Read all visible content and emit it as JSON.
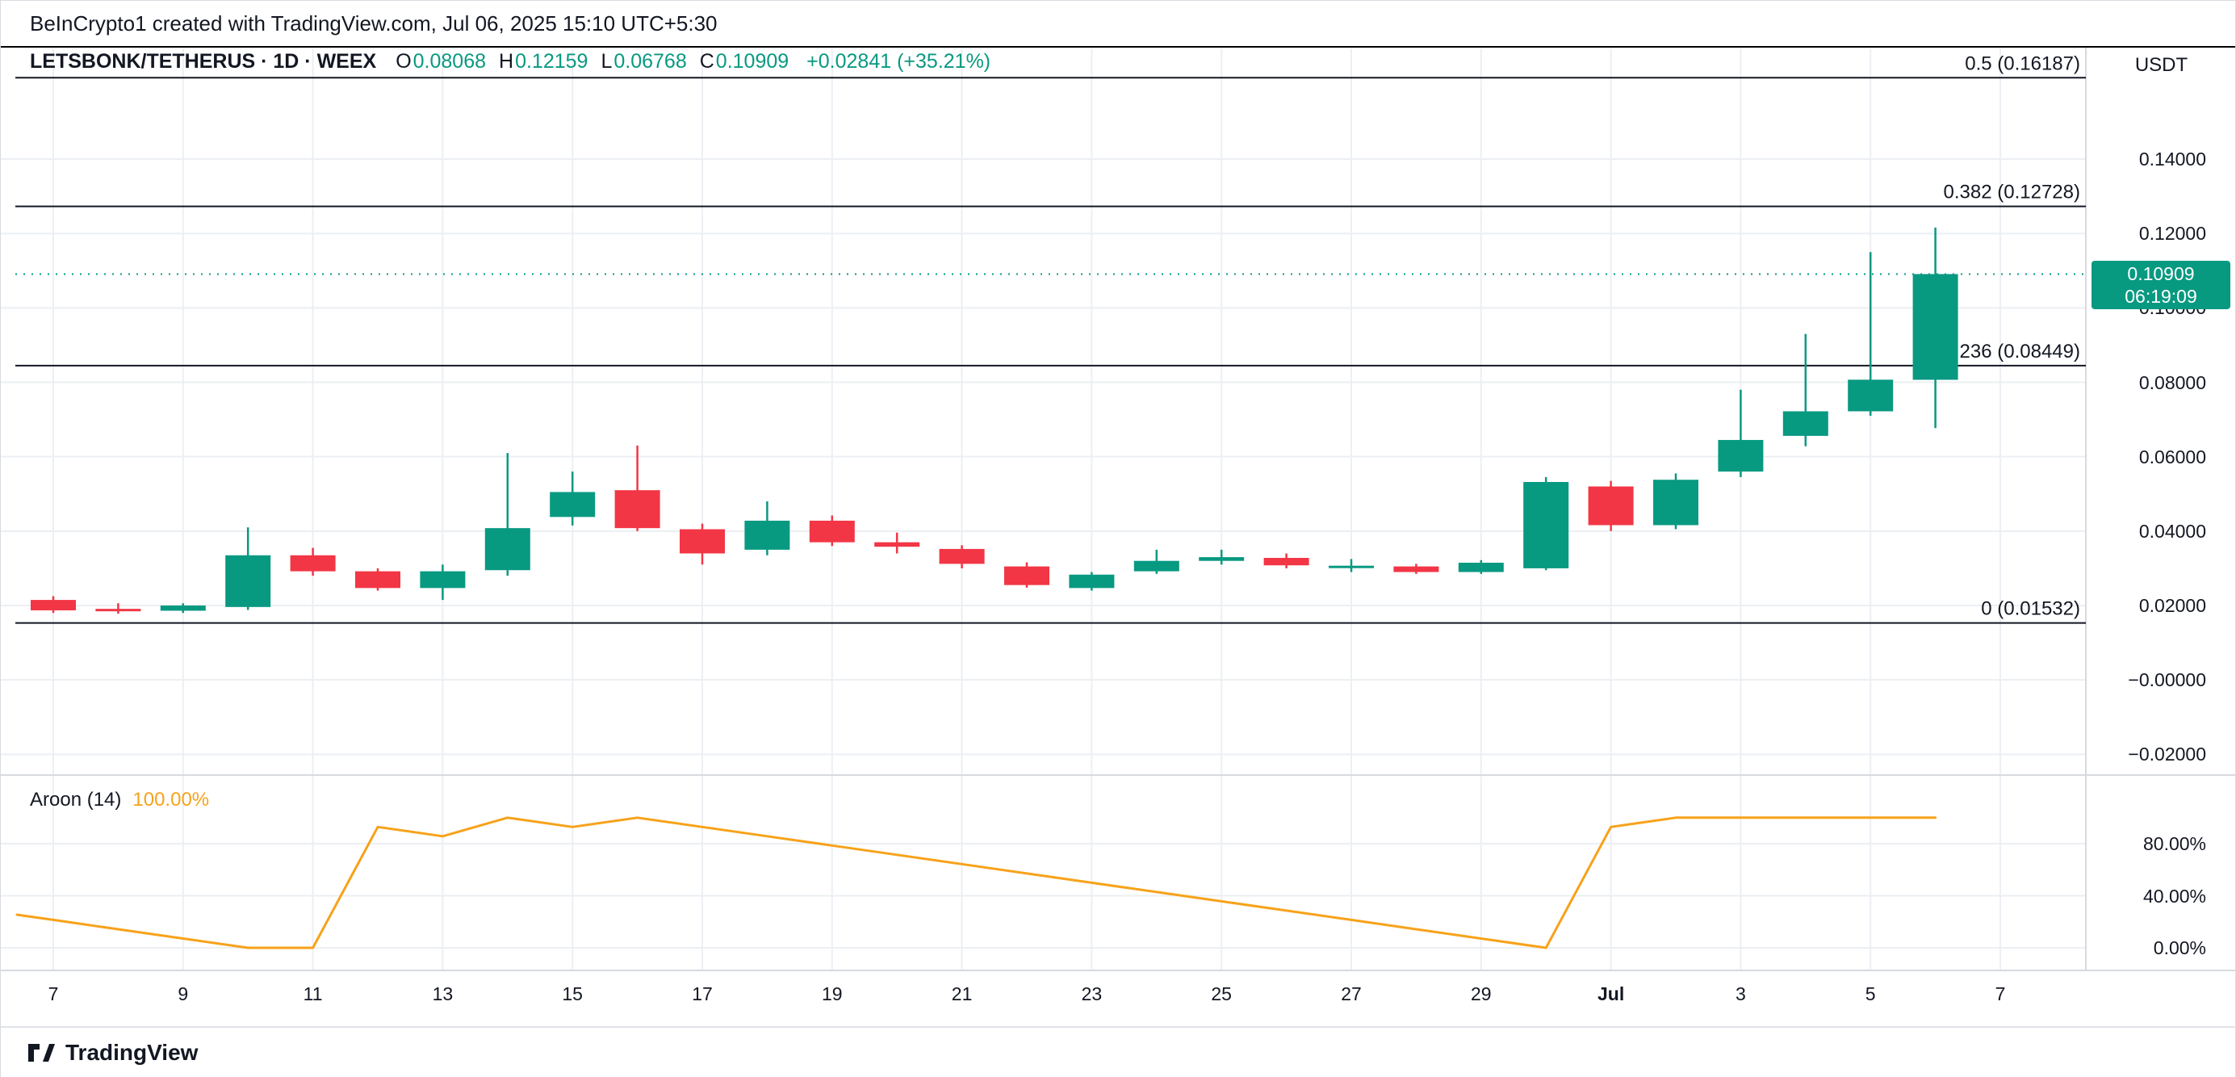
{
  "attribution": "BeInCrypto1 created with TradingView.com, Jul 06, 2025 15:10 UTC+5:30",
  "symbol_bar": {
    "title": "LETSBONK/TETHERUS · 1D · WEEX",
    "ohlc": [
      {
        "label": "O",
        "value": "0.08068"
      },
      {
        "label": "H",
        "value": "0.12159"
      },
      {
        "label": "L",
        "value": "0.06768"
      },
      {
        "label": "C",
        "value": "0.10909"
      }
    ],
    "change": "+0.02841 (+35.21%)"
  },
  "price_axis": {
    "unit": "USDT",
    "ticks": [
      {
        "label": "0.14000",
        "value": 0.14
      },
      {
        "label": "0.12000",
        "value": 0.12
      },
      {
        "label": "0.10000",
        "value": 0.1
      },
      {
        "label": "0.08000",
        "value": 0.08
      },
      {
        "label": "0.06000",
        "value": 0.06
      },
      {
        "label": "0.04000",
        "value": 0.04
      },
      {
        "label": "0.02000",
        "value": 0.02
      },
      {
        "label": "−0.00000",
        "value": 0.0
      },
      {
        "label": "−0.02000",
        "value": -0.02
      }
    ],
    "current": {
      "value": 0.10909,
      "value_label": "0.10909",
      "countdown": "06:19:09"
    }
  },
  "time_axis": {
    "ticks": [
      {
        "label": "7",
        "index": 0
      },
      {
        "label": "9",
        "index": 2
      },
      {
        "label": "11",
        "index": 4
      },
      {
        "label": "13",
        "index": 6
      },
      {
        "label": "15",
        "index": 8
      },
      {
        "label": "17",
        "index": 10
      },
      {
        "label": "19",
        "index": 12
      },
      {
        "label": "21",
        "index": 14
      },
      {
        "label": "23",
        "index": 16
      },
      {
        "label": "25",
        "index": 18
      },
      {
        "label": "27",
        "index": 20
      },
      {
        "label": "29",
        "index": 22
      },
      {
        "label": "Jul",
        "index": 24,
        "bold": true
      },
      {
        "label": "3",
        "index": 26
      },
      {
        "label": "5",
        "index": 28
      },
      {
        "label": "7",
        "index": 30
      }
    ]
  },
  "aroon": {
    "name": "Aroon (14)",
    "value_label": "100.00%",
    "ticks": [
      {
        "label": "80.00%",
        "value": 80
      },
      {
        "label": "40.00%",
        "value": 40
      },
      {
        "label": "0.00%",
        "value": 0
      }
    ]
  },
  "fib_levels": [
    {
      "label": "0.5 (0.16187)",
      "price": 0.16187
    },
    {
      "label": "0.382 (0.12728)",
      "price": 0.12728
    },
    {
      "label": "0.236 (0.08449)",
      "price": 0.08449
    },
    {
      "label": "0 (0.01532)",
      "price": 0.01532
    }
  ],
  "footer": {
    "brand": "TradingView"
  },
  "colors": {
    "up": "#089981",
    "down": "#f23645",
    "aroon_line": "#f7a21a",
    "grid": "#eceff3",
    "fib": "#131722",
    "separator": "#d6d9de",
    "badge_bg": "#089981"
  },
  "chart_data": {
    "type": "candlestick",
    "symbol": "LETSBONK/TETHERUS",
    "interval": "1D",
    "exchange": "WEEX",
    "price_unit": "USDT",
    "last_price": 0.10909,
    "candles": [
      {
        "t": "Jun 7",
        "o": 0.0215,
        "h": 0.0225,
        "l": 0.018,
        "c": 0.0187
      },
      {
        "t": "Jun 8",
        "o": 0.0191,
        "h": 0.0206,
        "l": 0.0178,
        "c": 0.0186
      },
      {
        "t": "Jun 9",
        "o": 0.0186,
        "h": 0.0206,
        "l": 0.018,
        "c": 0.02
      },
      {
        "t": "Jun 10",
        "o": 0.0196,
        "h": 0.041,
        "l": 0.0188,
        "c": 0.0335
      },
      {
        "t": "Jun 11",
        "o": 0.0335,
        "h": 0.0355,
        "l": 0.028,
        "c": 0.0292
      },
      {
        "t": "Jun 12",
        "o": 0.0292,
        "h": 0.03,
        "l": 0.024,
        "c": 0.0247
      },
      {
        "t": "Jun 13",
        "o": 0.0247,
        "h": 0.031,
        "l": 0.0215,
        "c": 0.0292
      },
      {
        "t": "Jun 14",
        "o": 0.0295,
        "h": 0.061,
        "l": 0.028,
        "c": 0.0408
      },
      {
        "t": "Jun 15",
        "o": 0.0438,
        "h": 0.056,
        "l": 0.0415,
        "c": 0.0505
      },
      {
        "t": "Jun 16",
        "o": 0.051,
        "h": 0.063,
        "l": 0.04,
        "c": 0.0408
      },
      {
        "t": "Jun 17",
        "o": 0.0405,
        "h": 0.042,
        "l": 0.031,
        "c": 0.034
      },
      {
        "t": "Jun 18",
        "o": 0.035,
        "h": 0.048,
        "l": 0.0335,
        "c": 0.0428
      },
      {
        "t": "Jun 19",
        "o": 0.0428,
        "h": 0.0442,
        "l": 0.036,
        "c": 0.037
      },
      {
        "t": "Jun 20",
        "o": 0.037,
        "h": 0.0396,
        "l": 0.034,
        "c": 0.0358
      },
      {
        "t": "Jun 21",
        "o": 0.0352,
        "h": 0.0362,
        "l": 0.03,
        "c": 0.0312
      },
      {
        "t": "Jun 22",
        "o": 0.0305,
        "h": 0.0316,
        "l": 0.0248,
        "c": 0.0255
      },
      {
        "t": "Jun 23",
        "o": 0.0247,
        "h": 0.029,
        "l": 0.024,
        "c": 0.0283
      },
      {
        "t": "Jun 24",
        "o": 0.0292,
        "h": 0.035,
        "l": 0.0285,
        "c": 0.032
      },
      {
        "t": "Jun 25",
        "o": 0.032,
        "h": 0.035,
        "l": 0.031,
        "c": 0.033
      },
      {
        "t": "Jun 26",
        "o": 0.0328,
        "h": 0.034,
        "l": 0.03,
        "c": 0.0308
      },
      {
        "t": "Jun 27",
        "o": 0.0302,
        "h": 0.0325,
        "l": 0.029,
        "c": 0.0307
      },
      {
        "t": "Jun 28",
        "o": 0.0305,
        "h": 0.0312,
        "l": 0.0285,
        "c": 0.029
      },
      {
        "t": "Jun 29",
        "o": 0.029,
        "h": 0.0322,
        "l": 0.0285,
        "c": 0.0315
      },
      {
        "t": "Jun 30",
        "o": 0.03,
        "h": 0.0545,
        "l": 0.0295,
        "c": 0.0532
      },
      {
        "t": "Jul 1",
        "o": 0.052,
        "h": 0.0535,
        "l": 0.04,
        "c": 0.0416
      },
      {
        "t": "Jul 2",
        "o": 0.0416,
        "h": 0.0555,
        "l": 0.0405,
        "c": 0.0538
      },
      {
        "t": "Jul 3",
        "o": 0.056,
        "h": 0.078,
        "l": 0.0545,
        "c": 0.0645
      },
      {
        "t": "Jul 4",
        "o": 0.0656,
        "h": 0.093,
        "l": 0.0628,
        "c": 0.0722
      },
      {
        "t": "Jul 5",
        "o": 0.0722,
        "h": 0.115,
        "l": 0.071,
        "c": 0.0807
      },
      {
        "t": "Jul 6",
        "o": 0.08068,
        "h": 0.12159,
        "l": 0.06768,
        "c": 0.10909
      }
    ],
    "indicator": {
      "type": "line",
      "name": "Aroon",
      "period": 14,
      "range": [
        0,
        100
      ],
      "current": "100.00%",
      "values": [
        21.43,
        14.29,
        7.14,
        0,
        0,
        92.86,
        85.71,
        100,
        92.86,
        100,
        92.86,
        85.71,
        78.57,
        71.43,
        64.29,
        57.14,
        50,
        42.86,
        35.71,
        28.57,
        21.43,
        14.29,
        7.14,
        0,
        92.86,
        100,
        100,
        100,
        100,
        100
      ]
    }
  }
}
